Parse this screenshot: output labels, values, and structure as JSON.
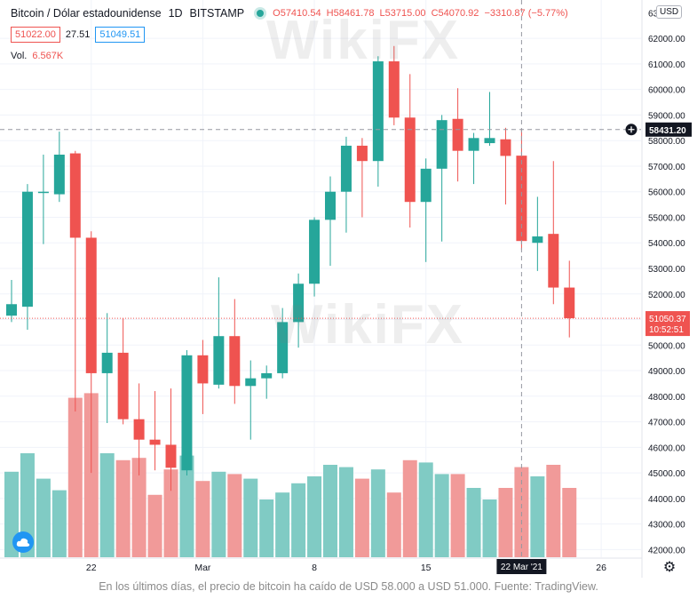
{
  "header": {
    "symbol": "Bitcoin / Dólar estadounidense",
    "interval": "1D",
    "exchange": "BITSTAMP",
    "open": "O57410.54",
    "high": "H58461.78",
    "low": "L53715.00",
    "close": "C54070.92",
    "change": "−3310.87 (−5.77%)"
  },
  "quote": {
    "bid": "51022.00",
    "spread": "27.51",
    "ask": "51049.51"
  },
  "volume": {
    "label": "Vol.",
    "value": "6.567K"
  },
  "currency": "USD",
  "top_price_label": "63",
  "crosshair": {
    "price": 58431.2,
    "price_label": "58431.20",
    "date_label": "22 Mar '21"
  },
  "last_price": {
    "value": 51050.37,
    "label": "51050.37",
    "countdown": "10:52:51"
  },
  "watermark": "WikiFX",
  "caption": "En los últimos días, el precio de bitcoin ha caído de USD 58.000 a USD 51.000. Fuente: TradingView.",
  "colors": {
    "up": "#26a69a",
    "down": "#ef5350",
    "up_vol": "#80cbc4",
    "down_vol": "#f19a99",
    "brand": "#2196f3"
  },
  "icons": {
    "logo": "tradingview-cloud-icon",
    "settings": "gear-icon",
    "crosshair_add": "plus-circle-icon"
  },
  "chart_data": {
    "type": "candlestick",
    "ylim": [
      41700,
      63500
    ],
    "yticks": [
      42000,
      43000,
      44000,
      45000,
      46000,
      47000,
      48000,
      49000,
      50000,
      51000,
      52000,
      53000,
      54000,
      55000,
      56000,
      57000,
      58000,
      59000,
      60000,
      61000,
      62000
    ],
    "xticks": [
      {
        "index": 5,
        "label": "22"
      },
      {
        "index": 12,
        "label": "Mar"
      },
      {
        "index": 19,
        "label": "8"
      },
      {
        "index": 26,
        "label": "15"
      },
      {
        "index": 37,
        "label": "26"
      }
    ],
    "candles": [
      {
        "o": 51150,
        "h": 52550,
        "l": 50900,
        "c": 51600,
        "v": 3.7
      },
      {
        "o": 51500,
        "h": 56300,
        "l": 50600,
        "c": 56000,
        "v": 4.5
      },
      {
        "o": 55950,
        "h": 57450,
        "l": 53950,
        "c": 56000,
        "v": 3.4
      },
      {
        "o": 55900,
        "h": 58350,
        "l": 55600,
        "c": 57450,
        "v": 2.9
      },
      {
        "o": 57500,
        "h": 57600,
        "l": 47400,
        "c": 54200,
        "v": 6.9
      },
      {
        "o": 54200,
        "h": 54450,
        "l": 45000,
        "c": 48900,
        "v": 7.1
      },
      {
        "o": 48900,
        "h": 51250,
        "l": 46950,
        "c": 49700,
        "v": 4.5
      },
      {
        "o": 49700,
        "h": 51050,
        "l": 46900,
        "c": 47100,
        "v": 4.2
      },
      {
        "o": 47100,
        "h": 48500,
        "l": 44900,
        "c": 46300,
        "v": 4.3
      },
      {
        "o": 46300,
        "h": 48200,
        "l": 45100,
        "c": 46100,
        "v": 2.7
      },
      {
        "o": 46100,
        "h": 48300,
        "l": 44300,
        "c": 45200,
        "v": 3.8
      },
      {
        "o": 45100,
        "h": 49800,
        "l": 44900,
        "c": 49600,
        "v": 4.4
      },
      {
        "o": 49600,
        "h": 50200,
        "l": 47300,
        "c": 48500,
        "v": 3.3
      },
      {
        "o": 48450,
        "h": 52650,
        "l": 48300,
        "c": 50350,
        "v": 3.7
      },
      {
        "o": 50350,
        "h": 51800,
        "l": 47700,
        "c": 48400,
        "v": 3.6
      },
      {
        "o": 48400,
        "h": 49400,
        "l": 46300,
        "c": 48700,
        "v": 3.4
      },
      {
        "o": 48700,
        "h": 49200,
        "l": 47900,
        "c": 48900,
        "v": 2.5
      },
      {
        "o": 48900,
        "h": 51450,
        "l": 48700,
        "c": 50900,
        "v": 2.8
      },
      {
        "o": 50900,
        "h": 52800,
        "l": 49900,
        "c": 52400,
        "v": 3.2
      },
      {
        "o": 52400,
        "h": 55000,
        "l": 51900,
        "c": 54900,
        "v": 3.5
      },
      {
        "o": 54900,
        "h": 56600,
        "l": 53100,
        "c": 56000,
        "v": 4.0
      },
      {
        "o": 56000,
        "h": 58150,
        "l": 54400,
        "c": 57800,
        "v": 3.9
      },
      {
        "o": 57800,
        "h": 58100,
        "l": 55000,
        "c": 57200,
        "v": 3.4
      },
      {
        "o": 57200,
        "h": 61300,
        "l": 56200,
        "c": 61100,
        "v": 3.8
      },
      {
        "o": 61100,
        "h": 61700,
        "l": 58600,
        "c": 58900,
        "v": 2.8
      },
      {
        "o": 58900,
        "h": 60600,
        "l": 54600,
        "c": 55600,
        "v": 4.2
      },
      {
        "o": 55600,
        "h": 57300,
        "l": 53250,
        "c": 56900,
        "v": 4.1
      },
      {
        "o": 56900,
        "h": 59000,
        "l": 54050,
        "c": 58800,
        "v": 3.6
      },
      {
        "o": 58850,
        "h": 60050,
        "l": 56400,
        "c": 57600,
        "v": 3.6
      },
      {
        "o": 57600,
        "h": 58300,
        "l": 56300,
        "c": 58100,
        "v": 3.0
      },
      {
        "o": 57900,
        "h": 59900,
        "l": 57800,
        "c": 58100,
        "v": 2.5
      },
      {
        "o": 58050,
        "h": 58500,
        "l": 55500,
        "c": 57400,
        "v": 3.0
      },
      {
        "o": 57410.54,
        "h": 58461.78,
        "l": 53715.0,
        "c": 54070.92,
        "v": 3.9
      },
      {
        "o": 54000,
        "h": 55800,
        "l": 52900,
        "c": 54250,
        "v": 3.5
      },
      {
        "o": 54350,
        "h": 57200,
        "l": 51600,
        "c": 52250,
        "v": 4.0
      },
      {
        "o": 52250,
        "h": 53300,
        "l": 50300,
        "c": 51050.37,
        "v": 3.0
      }
    ]
  }
}
